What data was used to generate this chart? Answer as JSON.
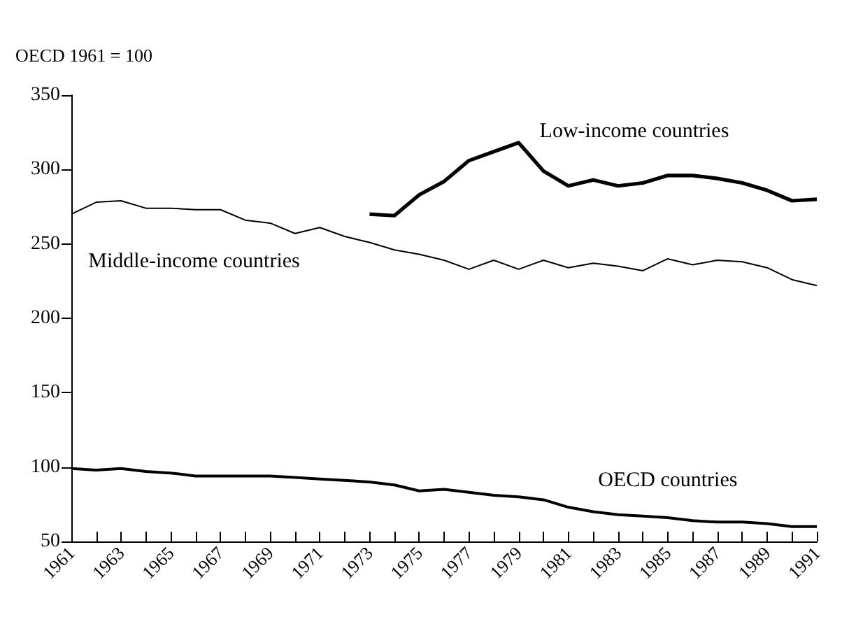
{
  "chart_data": {
    "type": "line",
    "ylabel": "OECD 1961 = 100",
    "x": [
      1961,
      1962,
      1963,
      1964,
      1965,
      1966,
      1967,
      1968,
      1969,
      1970,
      1971,
      1972,
      1973,
      1974,
      1975,
      1976,
      1977,
      1978,
      1979,
      1980,
      1981,
      1982,
      1983,
      1984,
      1985,
      1986,
      1987,
      1988,
      1989,
      1990,
      1991
    ],
    "series": [
      {
        "name": "Low-income countries",
        "color": "#000000",
        "values": [
          null,
          null,
          null,
          null,
          null,
          null,
          null,
          null,
          null,
          null,
          null,
          null,
          270,
          269,
          283,
          292,
          306,
          312,
          318,
          299,
          289,
          293,
          289,
          291,
          296,
          296,
          294,
          291,
          286,
          279,
          280
        ]
      },
      {
        "name": "Middle-income countries",
        "color": "#000000",
        "values": [
          270,
          278,
          279,
          274,
          274,
          273,
          273,
          266,
          264,
          257,
          261,
          255,
          251,
          246,
          243,
          239,
          233,
          239,
          233,
          239,
          234,
          237,
          235,
          232,
          240,
          236,
          239,
          238,
          234,
          226,
          222
        ]
      },
      {
        "name": "OECD countries",
        "color": "#000000",
        "values": [
          99,
          98,
          99,
          97,
          96,
          94,
          94,
          94,
          94,
          93,
          92,
          91,
          90,
          88,
          84,
          85,
          83,
          81,
          80,
          78,
          73,
          70,
          68,
          67,
          66,
          64,
          63,
          63,
          62,
          60,
          60
        ]
      }
    ],
    "xlim": [
      1961,
      1991
    ],
    "xticks": [
      1961,
      {
        "value": 1962,
        "label": null
      },
      1963,
      {
        "value": 1964,
        "label": null
      },
      1965,
      {
        "value": 1966,
        "label": null
      },
      1967,
      {
        "value": 1968,
        "label": null
      },
      1969,
      {
        "value": 1970,
        "label": null
      },
      1971,
      {
        "value": 1972,
        "label": null
      },
      1973,
      {
        "value": 1974,
        "label": null
      },
      1975,
      {
        "value": 1976,
        "label": null
      },
      1977,
      {
        "value": 1978,
        "label": null
      },
      1979,
      {
        "value": 1980,
        "label": null
      },
      1981,
      {
        "value": 1982,
        "label": null
      },
      1983,
      {
        "value": 1984,
        "label": null
      },
      1985,
      {
        "value": 1986,
        "label": null
      },
      1987,
      {
        "value": 1988,
        "label": null
      },
      1989,
      {
        "value": 1990,
        "label": null
      },
      1991
    ],
    "ylim": [
      50,
      350
    ],
    "yticks": [
      50,
      100,
      150,
      200,
      250,
      300,
      350
    ],
    "grid": false,
    "legend": false,
    "marker": "none",
    "line_style": "solid"
  }
}
